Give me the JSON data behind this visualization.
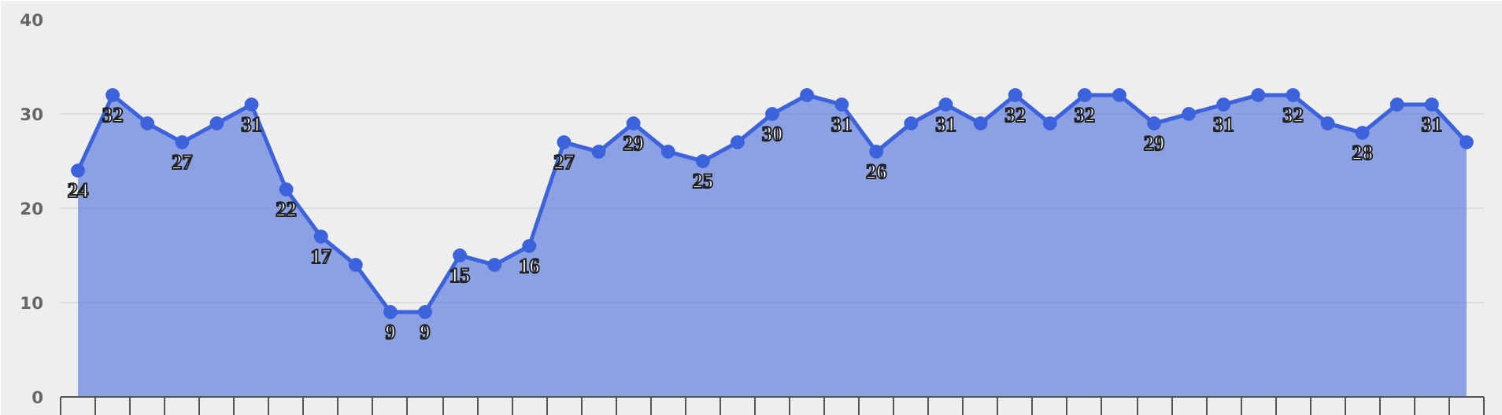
{
  "chart_data": {
    "type": "area",
    "categories": [
      null,
      null,
      null,
      null,
      null,
      null,
      null,
      null,
      null,
      null,
      null,
      null,
      null,
      null,
      null,
      null,
      null,
      null,
      null,
      null,
      null,
      null,
      null,
      null,
      null,
      null,
      null,
      null,
      null,
      null,
      null,
      null,
      null,
      null,
      null,
      null,
      null,
      null,
      null,
      null,
      null
    ],
    "series": [
      {
        "color": "#3d63dc",
        "values": [
          24,
          32,
          29,
          27,
          29,
          31,
          22,
          17,
          14,
          9,
          9,
          15,
          14,
          16,
          27,
          26,
          29,
          26,
          25,
          27,
          30,
          32,
          31,
          26,
          29,
          31,
          29,
          32,
          29,
          32,
          32,
          29,
          30,
          31,
          32,
          32,
          29,
          28,
          31,
          31,
          27
        ],
        "value_labels": [
          "24",
          "32",
          null,
          "27",
          null,
          "31",
          "22",
          "17",
          null,
          "9",
          "9",
          "15",
          null,
          "16",
          "27",
          null,
          "29",
          null,
          "25",
          null,
          "30",
          null,
          "31",
          "26",
          null,
          "31",
          null,
          "32",
          null,
          "32",
          null,
          "29",
          null,
          "31",
          null,
          "32",
          null,
          "28",
          null,
          "31",
          null
        ]
      }
    ],
    "ylim": [
      0,
      40
    ],
    "yticks": [
      0,
      10,
      20,
      30,
      40
    ],
    "grid": "y",
    "marker": "circle",
    "line_style": "solid"
  }
}
